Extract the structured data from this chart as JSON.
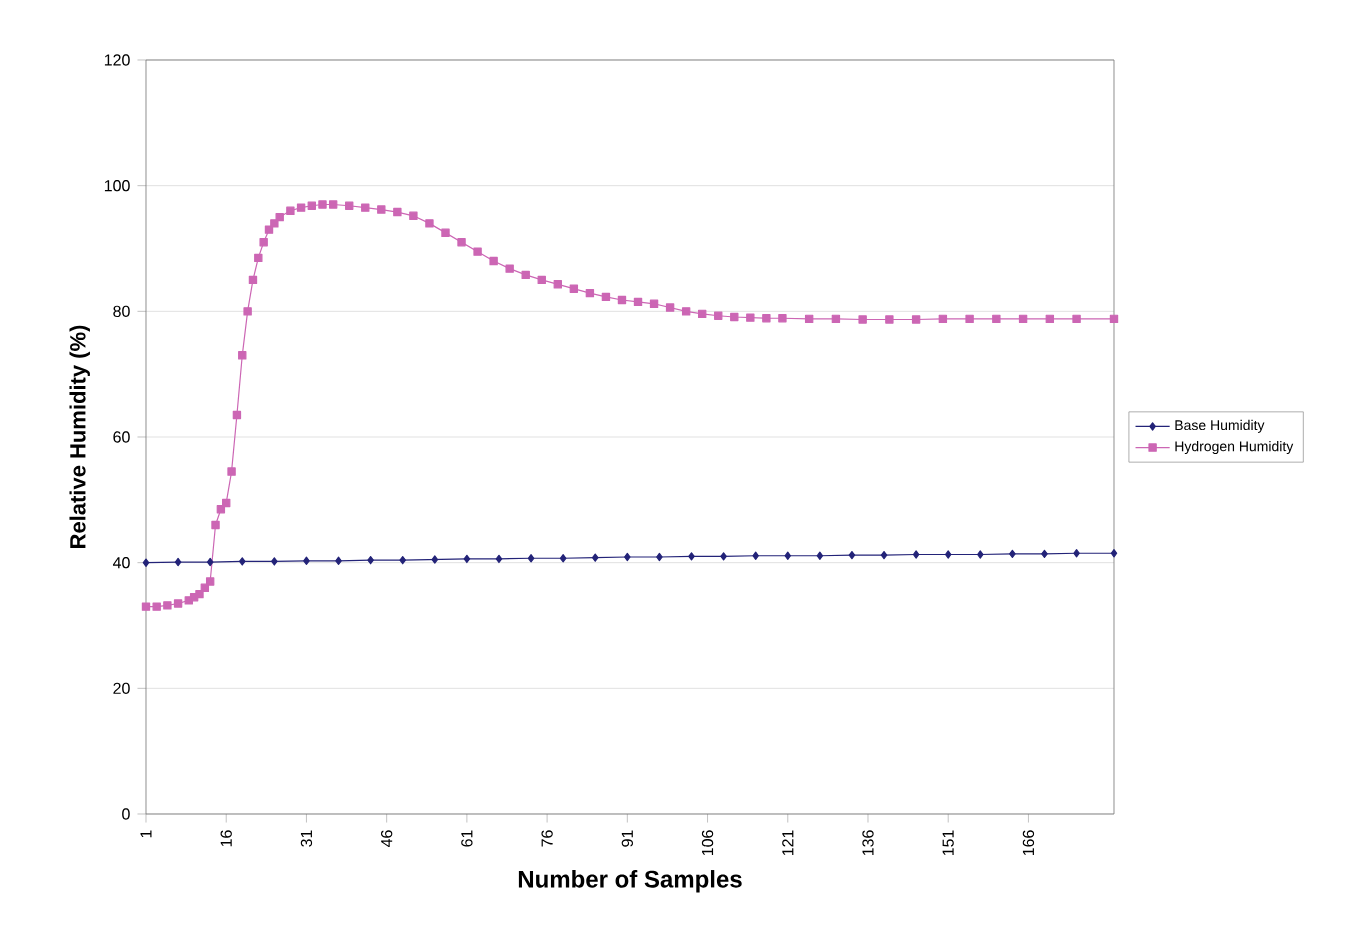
{
  "chart_data": {
    "type": "line",
    "xlabel": "Number of Samples",
    "ylabel": "Relative Humidity (%)",
    "xlim": [
      1,
      182
    ],
    "xticks": [
      1,
      16,
      31,
      46,
      61,
      76,
      91,
      106,
      121,
      136,
      151,
      166
    ],
    "ylim": [
      0,
      120
    ],
    "yticks": [
      0,
      20,
      40,
      60,
      80,
      100,
      120
    ],
    "grid": "y",
    "legend": "right",
    "series": [
      {
        "name": "Base Humidity",
        "color": "#232378",
        "marker": "diamond",
        "x": [
          1,
          7,
          13,
          19,
          25,
          31,
          37,
          43,
          49,
          55,
          61,
          67,
          73,
          79,
          85,
          91,
          97,
          103,
          109,
          115,
          121,
          127,
          133,
          139,
          145,
          151,
          157,
          163,
          169,
          175,
          182
        ],
        "values": [
          40.0,
          40.1,
          40.1,
          40.2,
          40.2,
          40.3,
          40.3,
          40.4,
          40.4,
          40.5,
          40.6,
          40.6,
          40.7,
          40.7,
          40.8,
          40.9,
          40.9,
          41.0,
          41.0,
          41.1,
          41.1,
          41.1,
          41.2,
          41.2,
          41.3,
          41.3,
          41.3,
          41.4,
          41.4,
          41.5,
          41.5
        ]
      },
      {
        "name": "Hydrogen Humidity",
        "color": "#cc66b4",
        "marker": "square",
        "x": [
          1,
          3,
          5,
          7,
          9,
          10,
          11,
          12,
          13,
          14,
          15,
          16,
          17,
          18,
          19,
          20,
          21,
          22,
          23,
          24,
          25,
          26,
          28,
          30,
          32,
          34,
          36,
          39,
          42,
          45,
          48,
          51,
          54,
          57,
          60,
          63,
          66,
          69,
          72,
          75,
          78,
          81,
          84,
          87,
          90,
          93,
          96,
          99,
          102,
          105,
          108,
          111,
          114,
          117,
          120,
          125,
          130,
          135,
          140,
          145,
          150,
          155,
          160,
          165,
          170,
          175,
          182
        ],
        "values": [
          33.0,
          33.0,
          33.2,
          33.5,
          34.0,
          34.5,
          35.0,
          36.0,
          37.0,
          46.0,
          48.5,
          49.5,
          54.5,
          63.5,
          73.0,
          80.0,
          85.0,
          88.5,
          91.0,
          93.0,
          94.0,
          95.0,
          96.0,
          96.5,
          96.8,
          97.0,
          97.0,
          96.8,
          96.5,
          96.2,
          95.8,
          95.2,
          94.0,
          92.5,
          91.0,
          89.5,
          88.0,
          86.8,
          85.8,
          85.0,
          84.3,
          83.6,
          82.9,
          82.3,
          81.8,
          81.5,
          81.2,
          80.6,
          80.0,
          79.6,
          79.3,
          79.1,
          79.0,
          78.9,
          78.9,
          78.8,
          78.8,
          78.7,
          78.7,
          78.7,
          78.8,
          78.8,
          78.8,
          78.8,
          78.8,
          78.8,
          78.8
        ]
      }
    ]
  }
}
